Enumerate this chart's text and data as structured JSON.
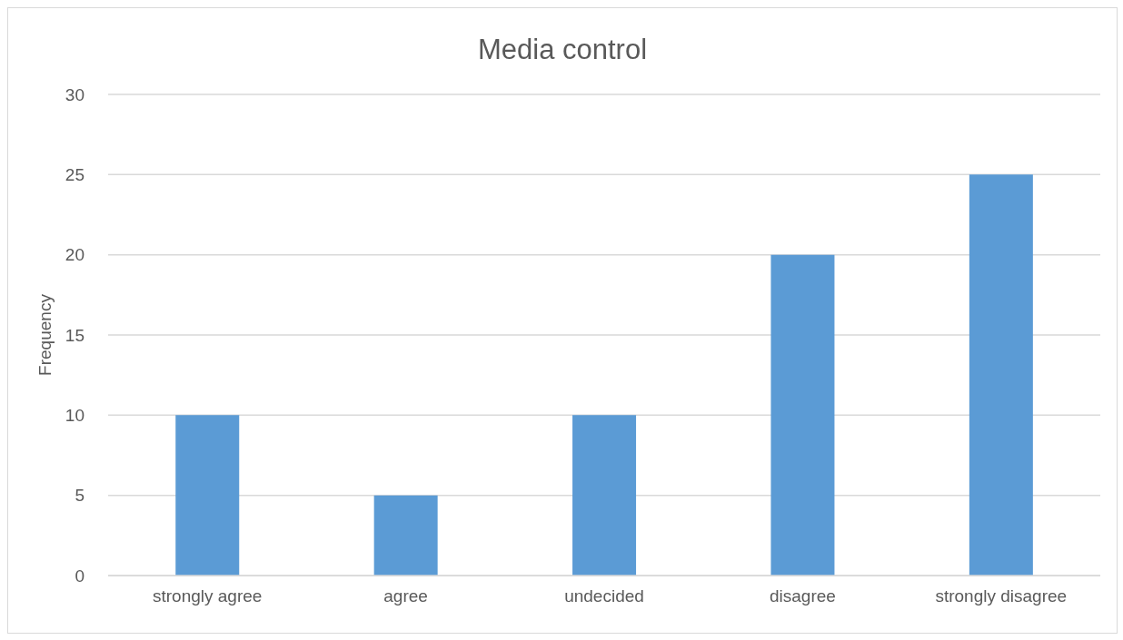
{
  "chart_data": {
    "type": "bar",
    "title": "Media control",
    "ylabel": "Frequency",
    "categories": [
      "strongly agree",
      "agree",
      "undecided",
      "disagree",
      "strongly disagree"
    ],
    "values": [
      10,
      5,
      10,
      20,
      25
    ],
    "color": "#5b9bd5",
    "ylim": [
      0,
      30
    ],
    "yticks": [
      0,
      5,
      10,
      15,
      20,
      25,
      30
    ],
    "grid": "y"
  }
}
